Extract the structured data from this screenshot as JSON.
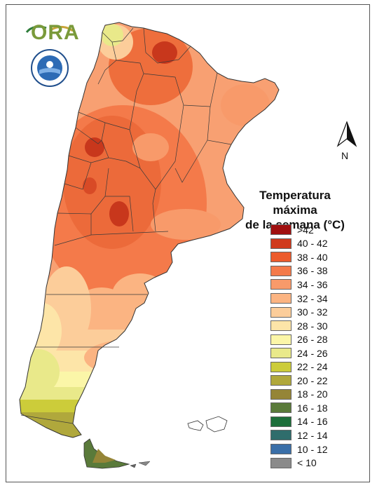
{
  "logo": {
    "text": "ORA"
  },
  "north": {
    "label": "N"
  },
  "legend": {
    "title_line1": "Temperatura máxima",
    "title_line2": "de la semana (°C)",
    "items": [
      {
        "label": ">42",
        "color": "#a01010"
      },
      {
        "label": "40 - 42",
        "color": "#d03a1c"
      },
      {
        "label": "38 - 40",
        "color": "#ec5b2c"
      },
      {
        "label": "36 - 38",
        "color": "#f47a4a"
      },
      {
        "label": "34 - 36",
        "color": "#f89a6a"
      },
      {
        "label": "32 - 34",
        "color": "#fbb482"
      },
      {
        "label": "30 - 32",
        "color": "#fccd9a"
      },
      {
        "label": "28 - 30",
        "color": "#fde5a8"
      },
      {
        "label": "26 - 28",
        "color": "#fbf6a8"
      },
      {
        "label": "24 - 26",
        "color": "#e9e98a"
      },
      {
        "label": "22 - 24",
        "color": "#cccc3a"
      },
      {
        "label": "20 - 22",
        "color": "#b0a83c"
      },
      {
        "label": "18 - 20",
        "color": "#958537"
      },
      {
        "label": "16 - 18",
        "color": "#5a7a3a"
      },
      {
        "label": "14 - 16",
        "color": "#1d6e3a"
      },
      {
        "label": "12 - 14",
        "color": "#2f6d6c"
      },
      {
        "label": "10 - 12",
        "color": "#3a6fa8"
      },
      {
        "label": "< 10",
        "color": "#8a8a8a"
      }
    ]
  }
}
